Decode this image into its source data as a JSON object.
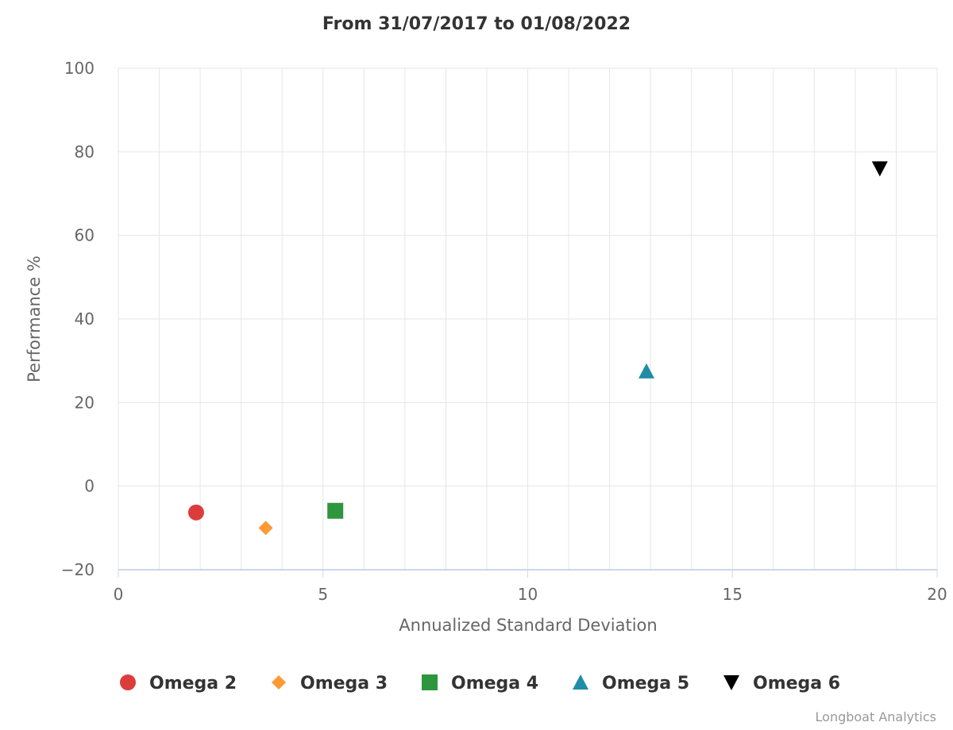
{
  "chart_data": {
    "type": "scatter",
    "title": "From 31/07/2017 to 01/08/2022",
    "xlabel": "Annualized Standard Deviation",
    "ylabel": "Performance %",
    "xlim": [
      0,
      20
    ],
    "ylim": [
      -20,
      100
    ],
    "x_ticks": [
      "0",
      "5",
      "10",
      "15",
      "20"
    ],
    "y_ticks": [
      "−20",
      "0",
      "20",
      "40",
      "60",
      "80",
      "100"
    ],
    "grid": true,
    "legend_position": "bottom",
    "series": [
      {
        "name": "Omega 2",
        "marker": "circle",
        "color": "#dc3c3c",
        "x": 1.9,
        "y": -6.3
      },
      {
        "name": "Omega 3",
        "marker": "diamond",
        "color": "#ff9933",
        "x": 3.6,
        "y": -10.0
      },
      {
        "name": "Omega 4",
        "marker": "square",
        "color": "#2e963c",
        "x": 5.3,
        "y": -5.9
      },
      {
        "name": "Omega 5",
        "marker": "triangle",
        "color": "#1f8ca8",
        "x": 12.9,
        "y": 27.5
      },
      {
        "name": "Omega 6",
        "marker": "triangle-down",
        "color": "#000000",
        "x": 18.6,
        "y": 76.0
      }
    ]
  },
  "credit": "Longboat Analytics"
}
